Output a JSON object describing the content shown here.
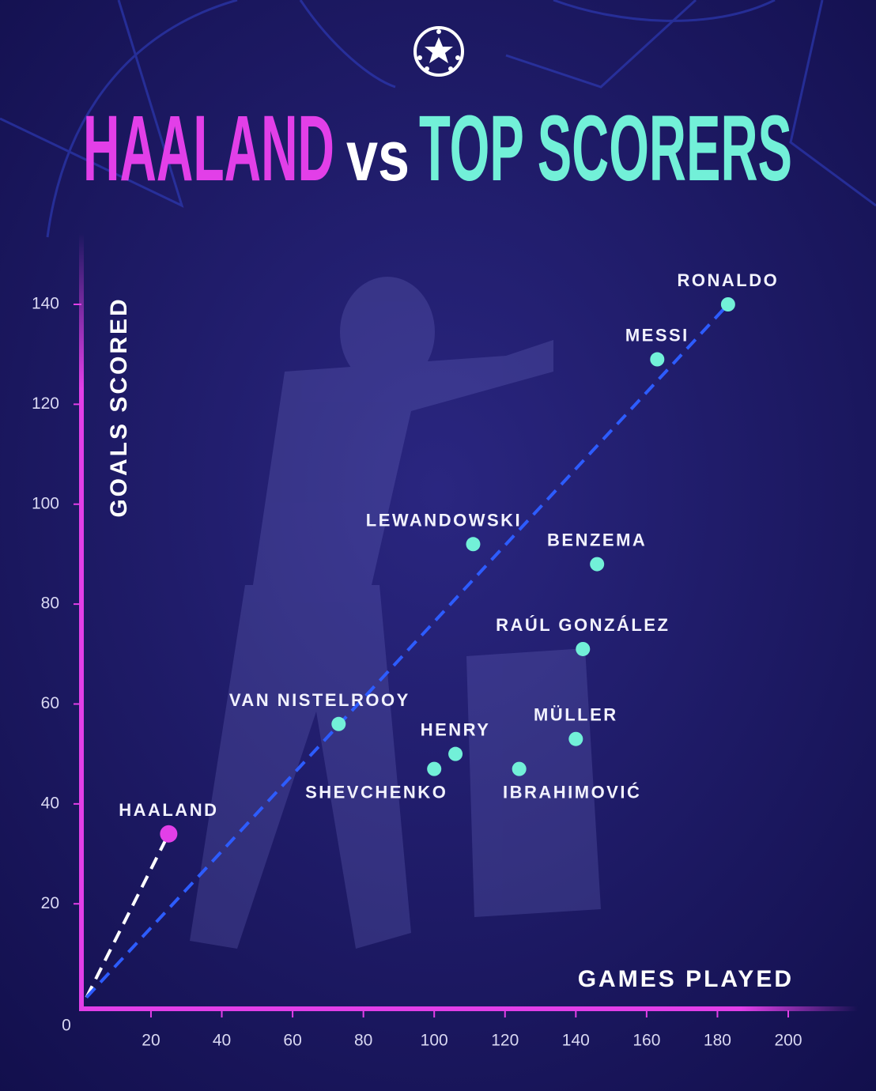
{
  "chart_data": {
    "type": "scatter",
    "title": {
      "player": "HAALAND",
      "connector": "vs",
      "rest": "TOP SCORERS"
    },
    "title_colors": {
      "player": "#e23fe8",
      "connector": "#ffffff",
      "rest": "#72f0d8"
    },
    "x_label": "GAMES PLAYED",
    "y_label": "GOALS SCORED",
    "xlim": [
      0,
      200
    ],
    "ylim": [
      0,
      140
    ],
    "xticks": [
      20,
      40,
      60,
      80,
      100,
      120,
      140,
      160,
      180,
      200
    ],
    "yticks": [
      0,
      20,
      40,
      60,
      80,
      100,
      120,
      140
    ],
    "axis_color": "#e23fe8",
    "series": [
      {
        "color": "#e23fe8",
        "labels": [
          "HAALAND"
        ],
        "x": [
          25
        ],
        "values": [
          34
        ],
        "trend_color": "#ffffff"
      },
      {
        "color": "#72f0d8",
        "labels": [
          "RONALDO",
          "MESSI",
          "LEWANDOWSKI",
          "BENZEMA",
          "RAÚL GONZÁLEZ",
          "VAN NISTELROOY",
          "HENRY",
          "SHEVCHENKO",
          "IBRAHIMOVIĆ",
          "MÜLLER"
        ],
        "x": [
          183,
          163,
          111,
          146,
          142,
          73,
          106,
          100,
          124,
          140
        ],
        "values": [
          140,
          129,
          92,
          88,
          71,
          56,
          50,
          47,
          47,
          53
        ],
        "trend_color": "#2d5cff"
      }
    ]
  }
}
